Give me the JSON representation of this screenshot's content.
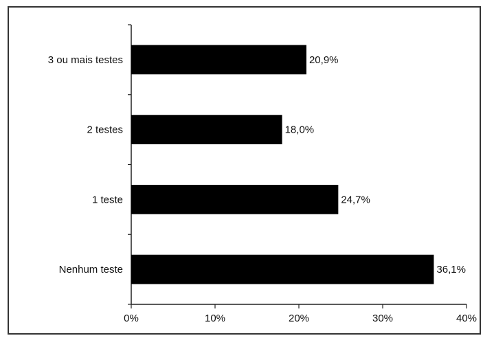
{
  "chart_data": {
    "type": "bar",
    "orientation": "horizontal",
    "categories": [
      "3 ou mais testes",
      "2 testes",
      "1 teste",
      "Nenhum teste"
    ],
    "values": [
      20.9,
      18.0,
      24.7,
      36.1
    ],
    "value_labels": [
      "20,9%",
      "18,0%",
      "24,7%",
      "36,1%"
    ],
    "xlim": [
      0,
      40
    ],
    "x_ticks": [
      0,
      10,
      20,
      30,
      40
    ],
    "x_tick_labels": [
      "0%",
      "10%",
      "20%",
      "30%",
      "40%"
    ],
    "title": "",
    "xlabel": "",
    "ylabel": "",
    "grid": false,
    "bar_color": "#000000"
  }
}
